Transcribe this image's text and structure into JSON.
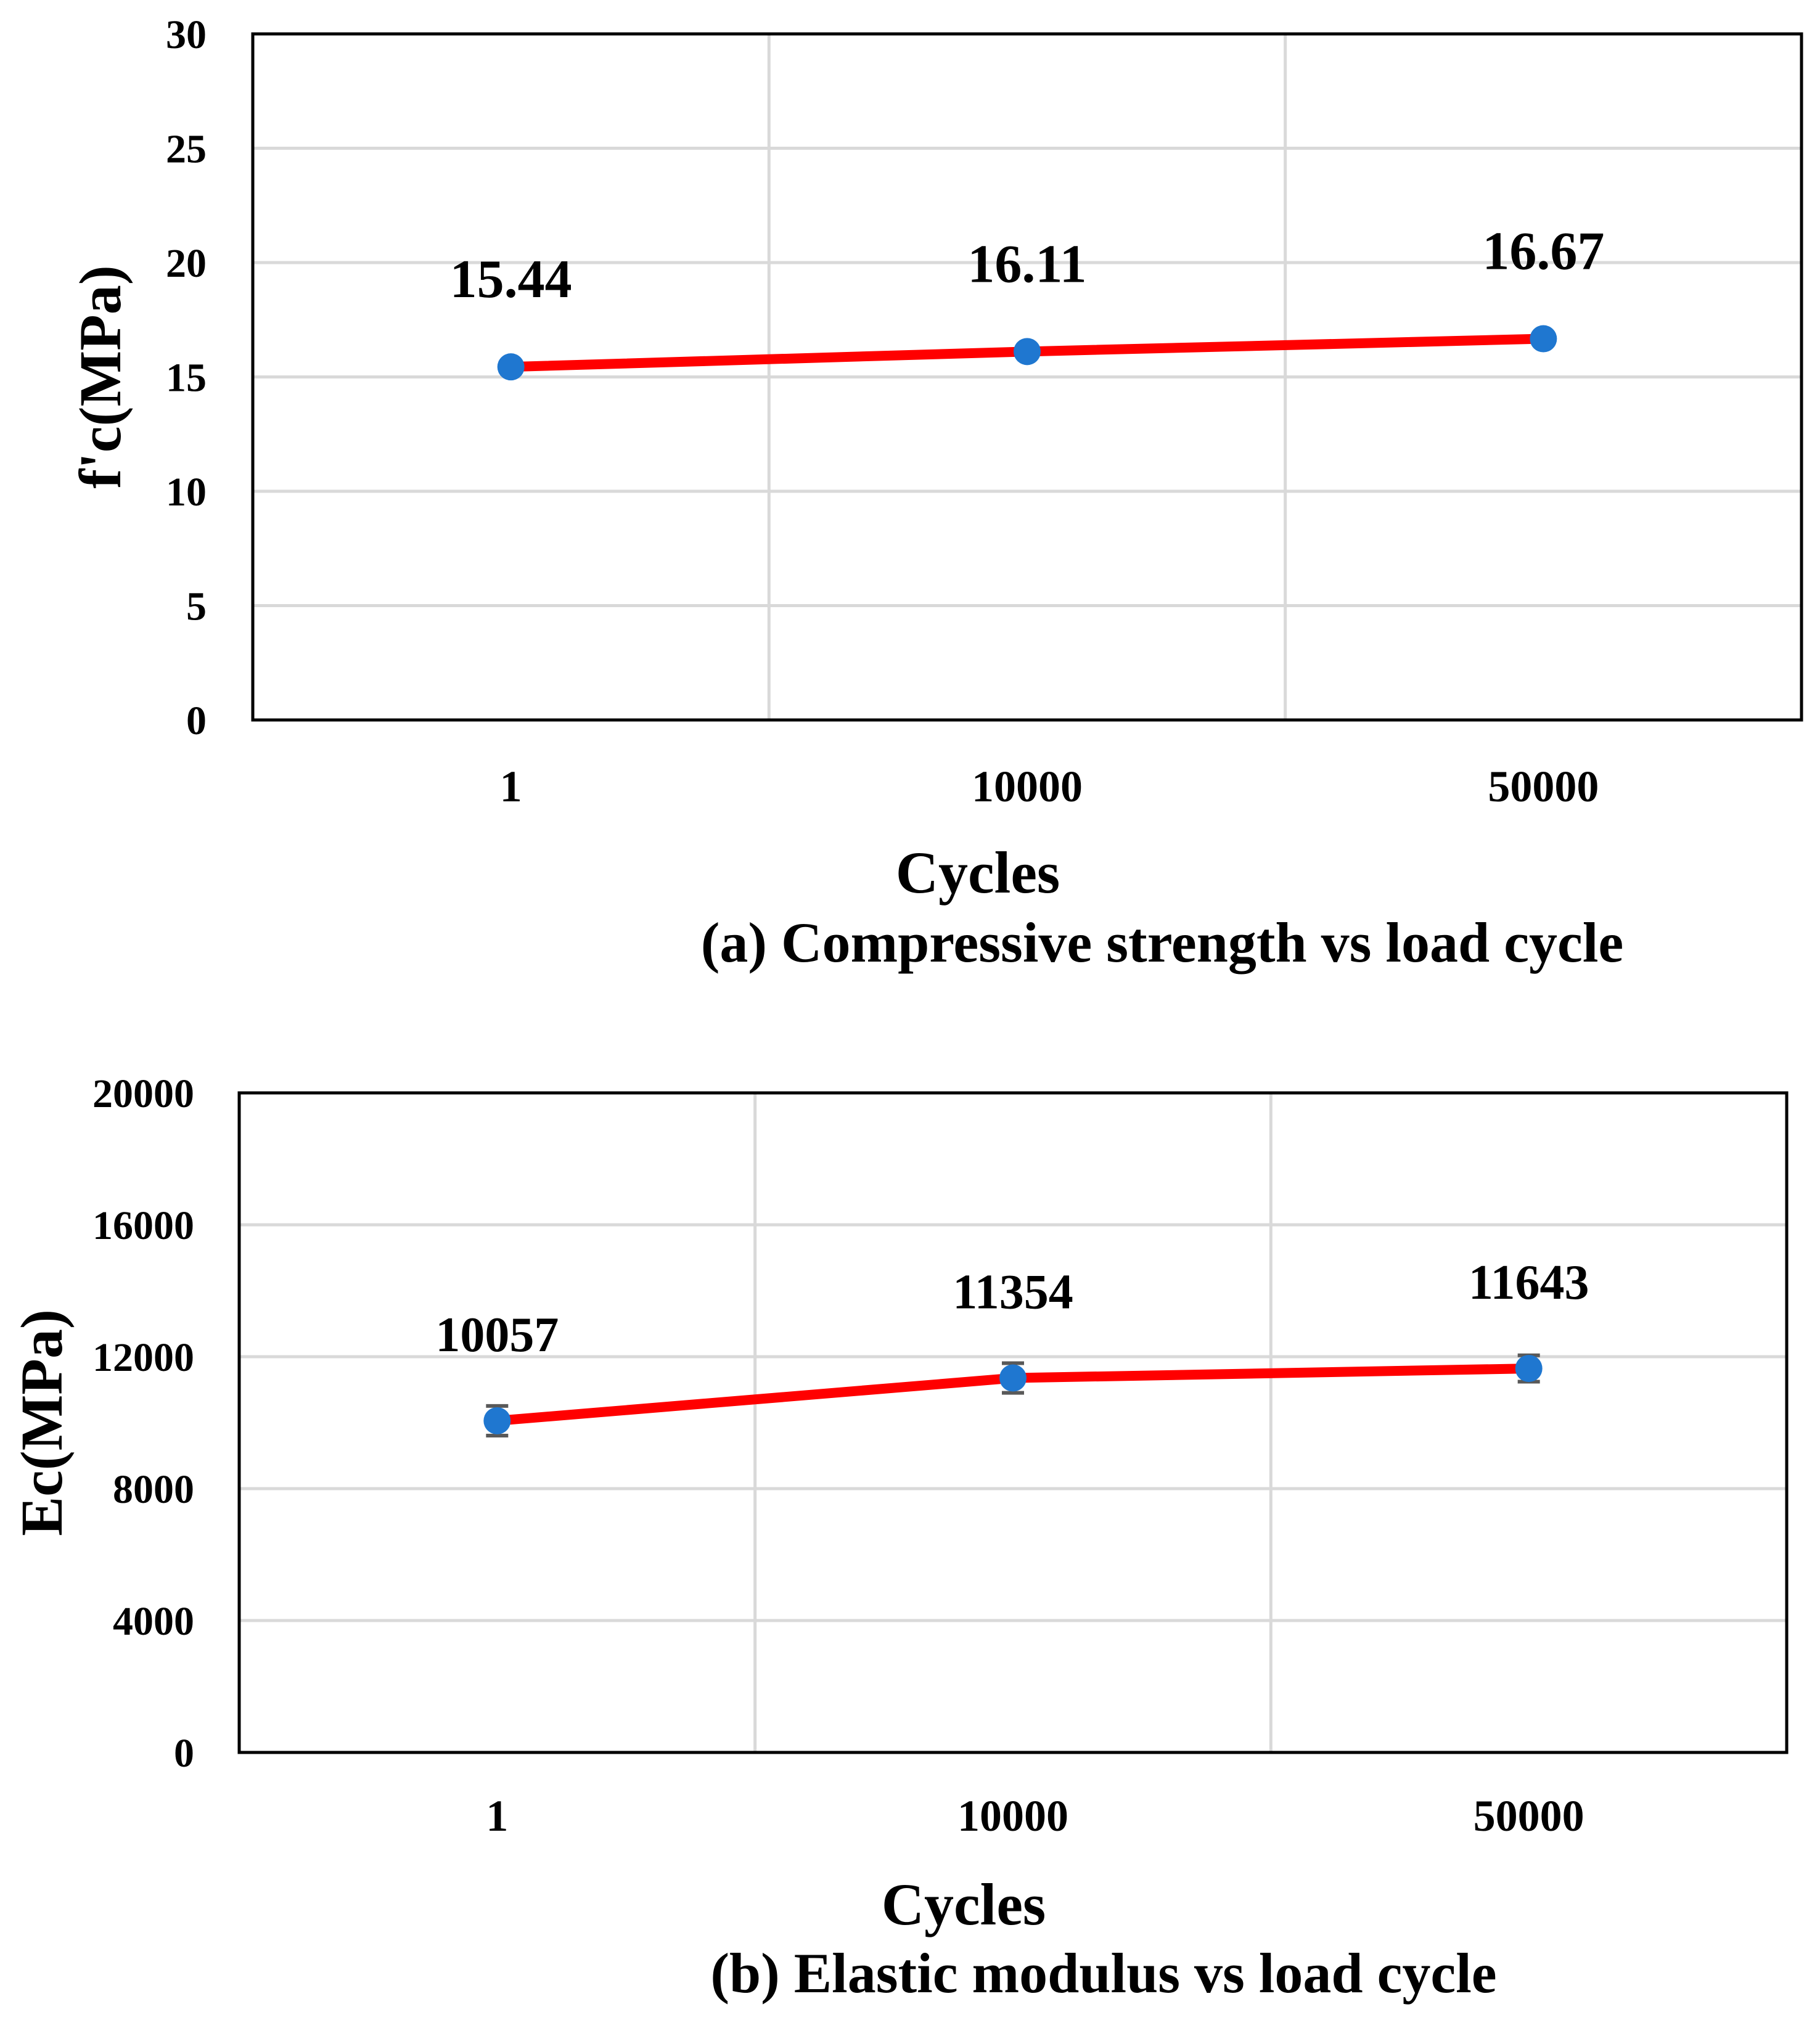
{
  "chart_data": [
    {
      "type": "line",
      "caption": "(a) Compressive strength vs load cycle",
      "categories": [
        "1",
        "10000",
        "50000"
      ],
      "series": [
        {
          "name": "f'c",
          "values": [
            15.44,
            16.11,
            16.67
          ]
        }
      ],
      "data_labels": [
        "15.44",
        "16.11",
        "16.67"
      ],
      "xlabel": "Cycles",
      "ylabel": "f'c(MPa)",
      "ylim": [
        0,
        30
      ],
      "yticks": [
        "0",
        "5",
        "10",
        "15",
        "20",
        "25",
        "30"
      ],
      "grid": true
    },
    {
      "type": "line",
      "caption": "(b) Elastic modulus vs load cycle",
      "categories": [
        "1",
        "10000",
        "50000"
      ],
      "series": [
        {
          "name": "Ec",
          "values": [
            10057,
            11354,
            11643
          ],
          "error": [
            450,
            450,
            400
          ]
        }
      ],
      "data_labels": [
        "10057",
        "11354",
        "11643"
      ],
      "xlabel": "Cycles",
      "ylabel": "Ec(MPa)",
      "ylim": [
        0,
        20000
      ],
      "yticks": [
        "0",
        "4000",
        "8000",
        "12000",
        "16000",
        "20000"
      ],
      "grid": true
    }
  ],
  "colors": {
    "line": "#ff0000",
    "marker": "#1f77d0",
    "grid": "#d9d9d9",
    "frame": "#000000",
    "errorbar": "#595959"
  }
}
